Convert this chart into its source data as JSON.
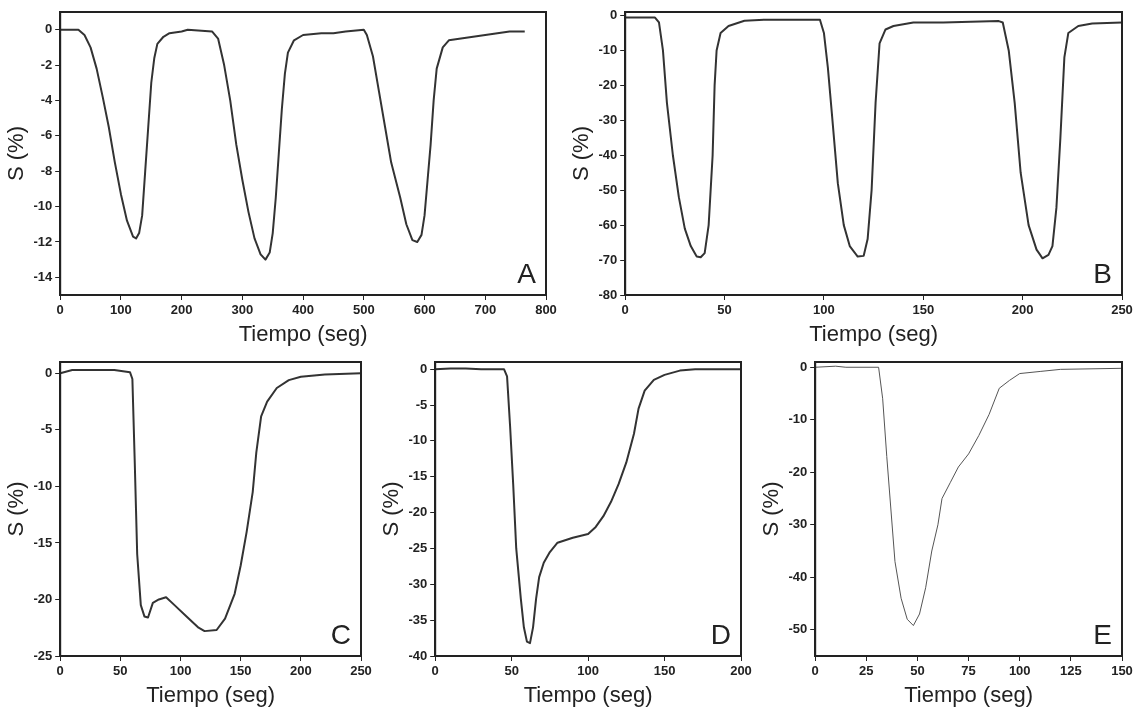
{
  "chart_data": [
    {
      "type": "line",
      "xlabel": "Tiempo (seg)",
      "ylabel": "S (%)",
      "annotations": [
        "A"
      ],
      "xlim": [
        0,
        800
      ],
      "xticks": [
        0,
        100,
        200,
        300,
        400,
        500,
        600,
        700,
        800
      ],
      "ylim": [
        -15,
        1
      ],
      "yticks": [
        0,
        -2,
        -4,
        -6,
        -8,
        -10,
        -12,
        -14
      ],
      "grid": false,
      "legend": false,
      "series": [
        {
          "color": "#333333",
          "x": [
            0,
            30,
            40,
            50,
            60,
            70,
            80,
            90,
            100,
            110,
            120,
            125,
            130,
            135,
            140,
            145,
            150,
            155,
            160,
            170,
            180,
            200,
            210,
            250,
            260,
            270,
            280,
            290,
            300,
            310,
            320,
            330,
            338,
            345,
            350,
            355,
            360,
            365,
            370,
            375,
            385,
            400,
            430,
            450,
            470,
            500,
            505,
            515,
            525,
            535,
            545,
            560,
            570,
            580,
            588,
            595,
            600,
            605,
            610,
            615,
            620,
            630,
            640,
            660,
            700,
            740,
            765
          ],
          "values": [
            0,
            0,
            -0.3,
            -1,
            -2.2,
            -3.8,
            -5.5,
            -7.5,
            -9.3,
            -10.8,
            -11.7,
            -11.8,
            -11.5,
            -10.5,
            -8,
            -5.5,
            -3,
            -1.6,
            -0.8,
            -0.4,
            -0.2,
            -0.1,
            0,
            -0.1,
            -0.5,
            -2,
            -4,
            -6.5,
            -8.5,
            -10.3,
            -11.8,
            -12.7,
            -13,
            -12.6,
            -11.5,
            -9.5,
            -7,
            -4.5,
            -2.5,
            -1.3,
            -0.6,
            -0.3,
            -0.2,
            -0.2,
            -0.1,
            0,
            -0.3,
            -1.5,
            -3.5,
            -5.5,
            -7.5,
            -9.5,
            -11,
            -11.9,
            -12,
            -11.6,
            -10.5,
            -8.5,
            -6.5,
            -4,
            -2.2,
            -1,
            -0.6,
            -0.5,
            -0.3,
            -0.1,
            -0.1
          ]
        }
      ]
    },
    {
      "type": "line",
      "xlabel": "Tiempo (seg)",
      "ylabel": "S (%)",
      "annotations": [
        "B"
      ],
      "xlim": [
        0,
        250
      ],
      "xticks": [
        0,
        50,
        100,
        150,
        200,
        250
      ],
      "ylim": [
        -80,
        1
      ],
      "yticks": [
        0,
        -10,
        -20,
        -30,
        -40,
        -50,
        -60,
        -70,
        -80
      ],
      "grid": false,
      "legend": false,
      "series": [
        {
          "color": "#333333",
          "x": [
            0,
            15,
            17,
            19,
            21,
            24,
            27,
            30,
            33,
            36,
            38,
            40,
            42,
            44,
            45,
            46,
            48,
            52,
            60,
            70,
            98,
            100,
            102,
            104,
            107,
            110,
            113,
            117,
            120,
            122,
            124,
            126,
            128,
            131,
            135,
            145,
            160,
            188,
            190,
            193,
            196,
            199,
            203,
            207,
            210,
            213,
            215,
            217,
            219,
            221,
            223,
            228,
            235,
            250
          ],
          "values": [
            -0.6,
            -0.6,
            -2,
            -10,
            -25,
            -40,
            -52,
            -61,
            -66,
            -69,
            -69.2,
            -68,
            -60,
            -40,
            -20,
            -10,
            -5,
            -3,
            -1.5,
            -1.2,
            -1.2,
            -5,
            -15,
            -28,
            -48,
            -60,
            -66,
            -69,
            -68.8,
            -64,
            -50,
            -25,
            -8,
            -4,
            -3,
            -2,
            -2,
            -1.6,
            -2,
            -10,
            -25,
            -45,
            -60,
            -67,
            -69.5,
            -68.5,
            -66,
            -55,
            -35,
            -12,
            -5,
            -3,
            -2.3,
            -2
          ]
        }
      ]
    },
    {
      "type": "line",
      "xlabel": "Tiempo (seg)",
      "ylabel": "S (%)",
      "annotations": [
        "C"
      ],
      "xlim": [
        0,
        250
      ],
      "xticks": [
        0,
        50,
        100,
        150,
        200,
        250
      ],
      "ylim": [
        -25,
        1
      ],
      "yticks": [
        0,
        -5,
        -10,
        -15,
        -20,
        -25
      ],
      "grid": false,
      "legend": false,
      "series": [
        {
          "color": "#333333",
          "x": [
            0,
            10,
            45,
            58,
            60,
            62,
            64,
            67,
            70,
            73,
            77,
            82,
            88,
            95,
            105,
            115,
            120,
            130,
            137,
            145,
            150,
            155,
            160,
            163,
            167,
            172,
            180,
            190,
            200,
            220,
            250
          ],
          "values": [
            0,
            0.3,
            0.3,
            0.1,
            -0.5,
            -8,
            -16,
            -20.5,
            -21.5,
            -21.6,
            -20.3,
            -20,
            -19.8,
            -20.5,
            -21.5,
            -22.5,
            -22.8,
            -22.7,
            -21.7,
            -19.5,
            -17,
            -14,
            -10.5,
            -7,
            -3.8,
            -2.5,
            -1.3,
            -0.6,
            -0.3,
            -0.1,
            0
          ]
        }
      ]
    },
    {
      "type": "line",
      "xlabel": "Tiempo (seg)",
      "ylabel": "S (%)",
      "annotations": [
        "D"
      ],
      "xlim": [
        0,
        200
      ],
      "xticks": [
        0,
        50,
        100,
        150,
        200
      ],
      "ylim": [
        -40,
        1
      ],
      "yticks": [
        0,
        -5,
        -10,
        -15,
        -20,
        -25,
        -30,
        -35,
        -40
      ],
      "grid": false,
      "legend": false,
      "series": [
        {
          "color": "#333333",
          "x": [
            0,
            10,
            20,
            30,
            45,
            47,
            49,
            51,
            53,
            56,
            58,
            60,
            62,
            64,
            66,
            68,
            71,
            75,
            80,
            90,
            100,
            105,
            110,
            115,
            120,
            125,
            130,
            133,
            137,
            143,
            150,
            160,
            170,
            200
          ],
          "values": [
            0,
            0.1,
            0.1,
            0,
            0,
            -1,
            -8,
            -16,
            -25,
            -32,
            -36,
            -38,
            -38.2,
            -36,
            -32,
            -29,
            -27,
            -25.5,
            -24.2,
            -23.5,
            -23,
            -22,
            -20.5,
            -18.5,
            -16,
            -13,
            -9,
            -5.5,
            -3,
            -1.5,
            -0.8,
            -0.2,
            0,
            0
          ]
        }
      ]
    },
    {
      "type": "line",
      "xlabel": "Tiempo (seg)",
      "ylabel": "S (%)",
      "annotations": [
        "E"
      ],
      "xlim": [
        0,
        150
      ],
      "xticks": [
        0,
        25,
        50,
        75,
        100,
        125,
        150
      ],
      "ylim": [
        -55,
        1
      ],
      "yticks": [
        0,
        -10,
        -20,
        -30,
        -40,
        -50
      ],
      "grid": false,
      "legend": false,
      "series": [
        {
          "color": "#555555",
          "x": [
            0,
            10,
            15,
            31,
            33,
            35,
            37,
            39,
            42,
            45,
            48,
            51,
            54,
            57,
            60,
            62,
            66,
            70,
            75,
            80,
            85,
            90,
            95,
            100,
            110,
            120,
            150
          ],
          "values": [
            0,
            0.2,
            0,
            0,
            -6,
            -17,
            -27,
            -37,
            -44,
            -48,
            -49.2,
            -47,
            -42,
            -35,
            -30,
            -25,
            -22,
            -19,
            -16.5,
            -13,
            -9,
            -4,
            -2.5,
            -1.2,
            -0.8,
            -0.4,
            -0.2
          ]
        }
      ]
    }
  ]
}
